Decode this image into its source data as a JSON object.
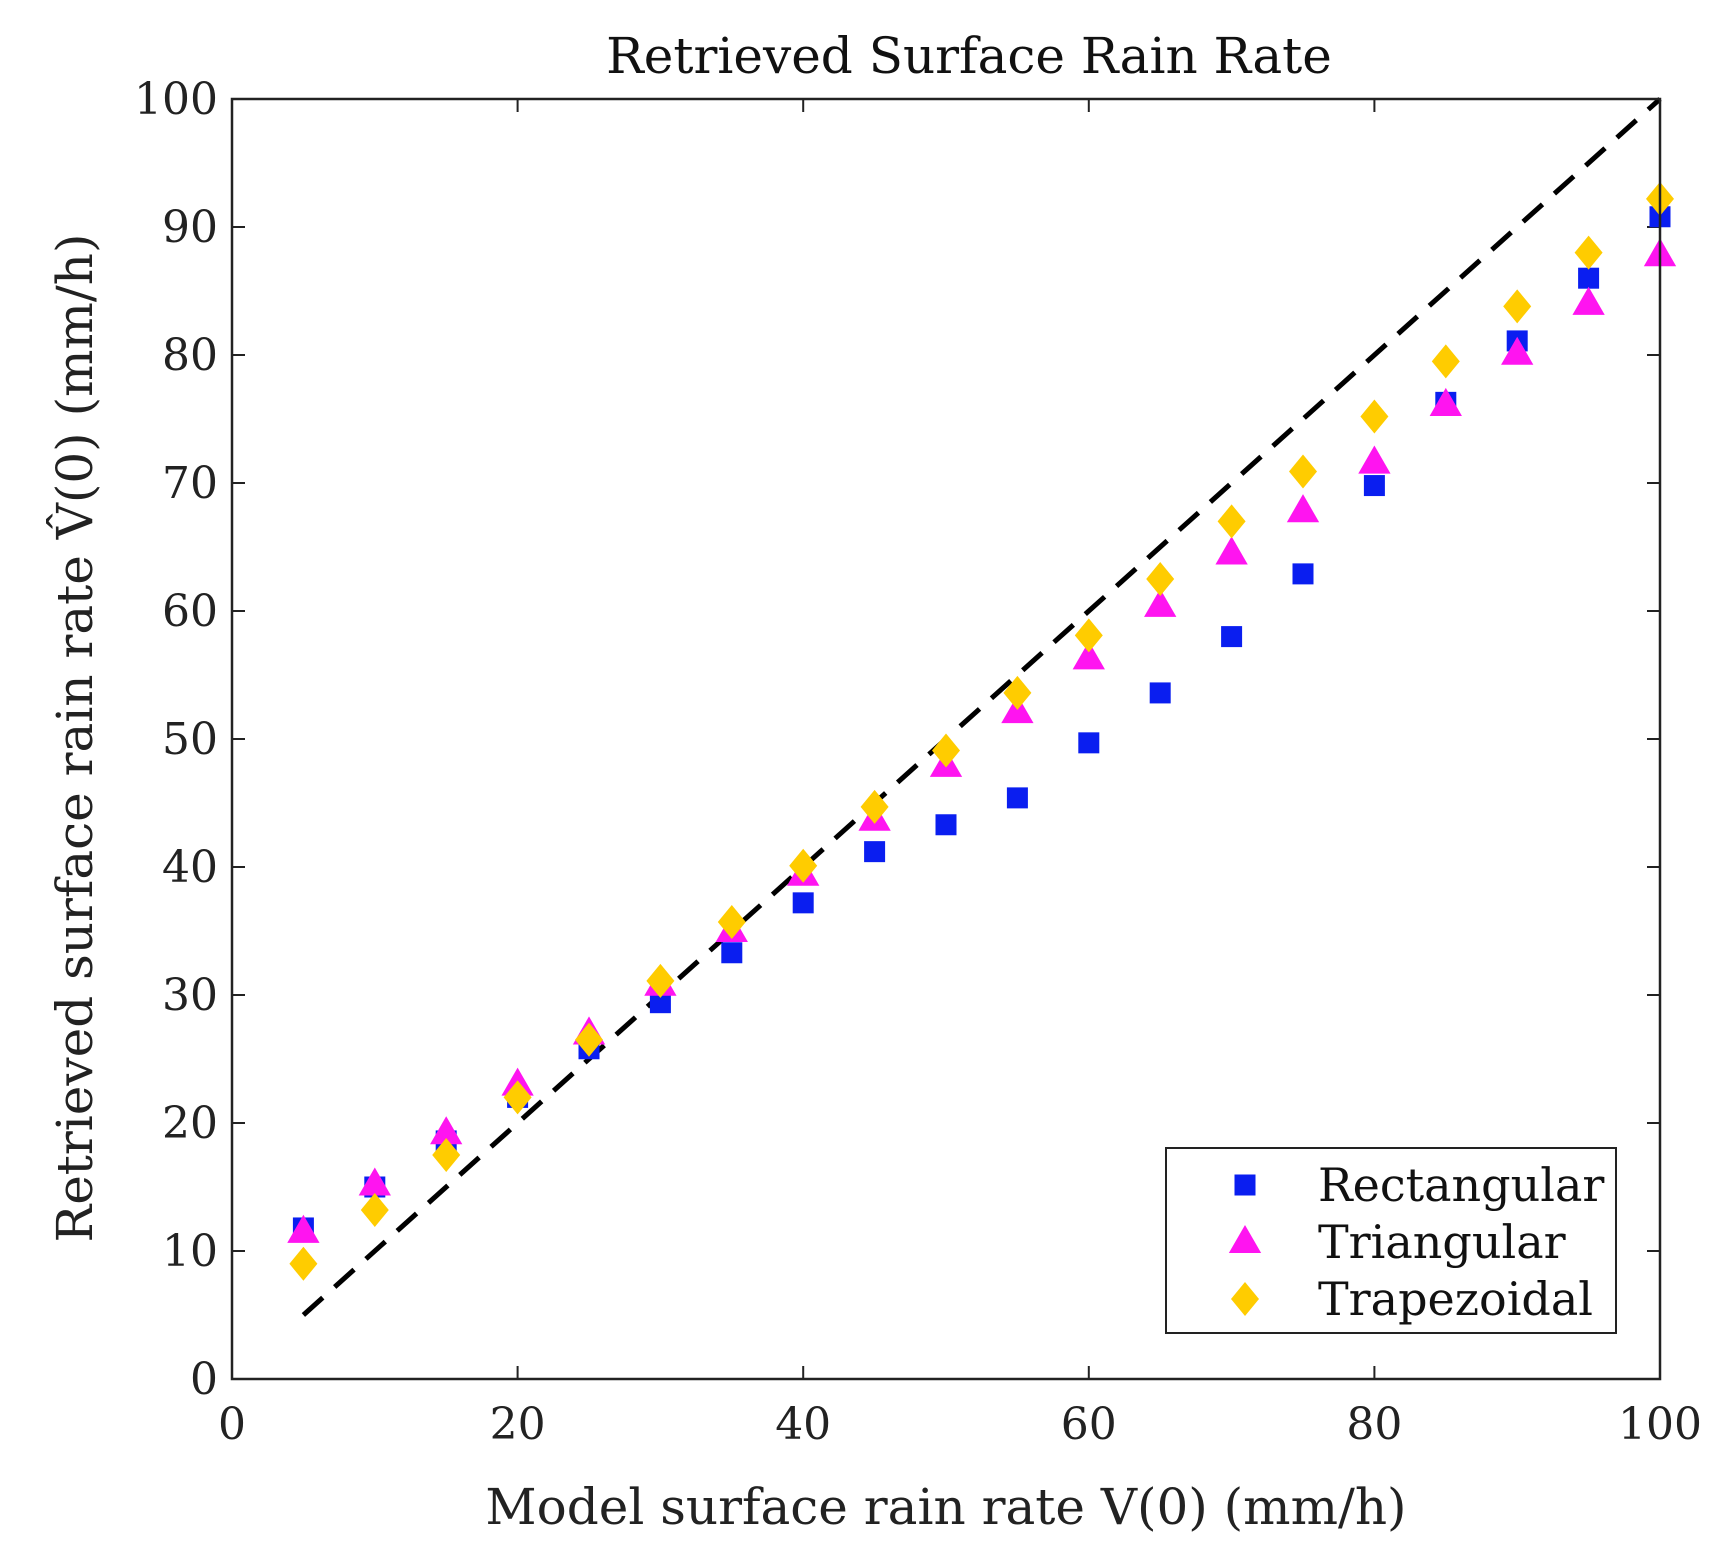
{
  "chart_data": {
    "type": "scatter",
    "title": "Retrieved Surface Rain Rate",
    "xlabel": "Model surface rain rate V(0) (mm/h)",
    "ylabel": "Retrieved surface rain rate V̂(0) (mm/h)",
    "xlim": [
      0,
      100
    ],
    "ylim": [
      0,
      100
    ],
    "xticks": [
      0,
      20,
      40,
      60,
      80,
      100
    ],
    "yticks": [
      0,
      10,
      20,
      30,
      40,
      50,
      60,
      70,
      80,
      90,
      100
    ],
    "grid": false,
    "legend_position": "bottom-right",
    "x": [
      5,
      10,
      15,
      20,
      25,
      30,
      35,
      40,
      45,
      50,
      55,
      60,
      65,
      70,
      75,
      80,
      85,
      90,
      95,
      100
    ],
    "reference_line": {
      "name": "1:1",
      "x": [
        5,
        100
      ],
      "y": [
        5,
        100
      ],
      "color": "#000000",
      "style": "dashed"
    },
    "series": [
      {
        "name": "Rectangular",
        "marker": "square",
        "color": "#0a1ef0",
        "values": [
          11.8,
          15.0,
          18.6,
          22.0,
          25.8,
          29.4,
          33.3,
          37.2,
          41.2,
          43.3,
          45.4,
          49.7,
          53.6,
          58.0,
          62.9,
          69.8,
          76.3,
          81.1,
          86.0,
          90.8
        ]
      },
      {
        "name": "Triangular",
        "marker": "triangle",
        "color": "#ff14f0",
        "values": [
          11.5,
          15.2,
          19.2,
          23.0,
          27.0,
          30.8,
          35.0,
          39.4,
          43.7,
          47.9,
          52.1,
          56.3,
          60.4,
          64.5,
          67.8,
          71.6,
          76.1,
          80.1,
          84.0,
          87.8
        ]
      },
      {
        "name": "Trapezoidal",
        "marker": "diamond",
        "color": "#ffcc00",
        "values": [
          9.0,
          13.2,
          17.5,
          22.0,
          26.5,
          31.1,
          35.7,
          40.1,
          44.7,
          49.1,
          53.6,
          58.1,
          62.5,
          67.0,
          70.9,
          75.2,
          79.5,
          83.8,
          88.0,
          92.2
        ]
      }
    ]
  }
}
